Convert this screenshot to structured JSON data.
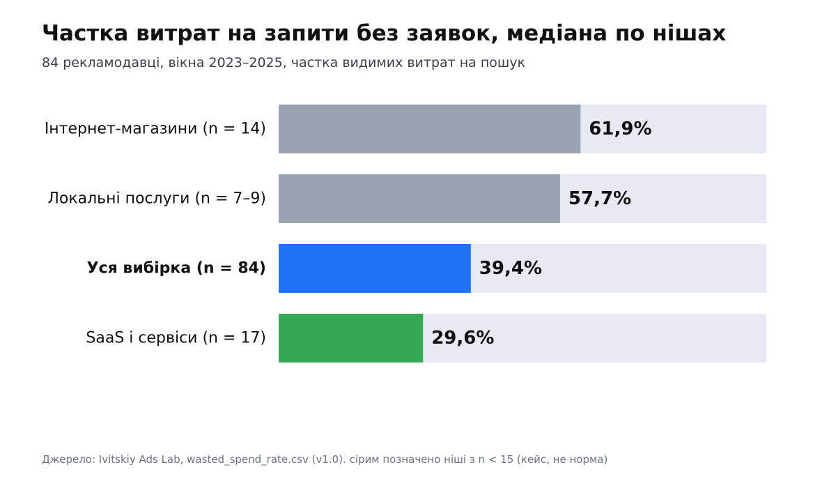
{
  "chart_data": {
    "type": "bar",
    "orientation": "horizontal",
    "title": "Частка витрат на запити без заявок, медіана по нішах",
    "subtitle": "84 рекламодавці, вікна 2023–2025, частка видимих витрат на пошук",
    "categories": [
      "Інтернет-магазини (n = 14)",
      "Локальні послуги (n = 7–9)",
      "Уся вибірка (n = 84)",
      "SaaS і сервіси (n = 17)"
    ],
    "values": [
      61.9,
      57.7,
      39.4,
      29.6
    ],
    "value_labels": [
      "61,9%",
      "57,7%",
      "39,4%",
      "29,6%"
    ],
    "emphasized": [
      false,
      false,
      true,
      false
    ],
    "colors": [
      "#9aa3b2",
      "#9aa3b2",
      "#1e73f7",
      "#34a853"
    ],
    "track_color": "#e7eaf2",
    "xlim": [
      0,
      100
    ],
    "grid": false,
    "legend": "none"
  },
  "footer": {
    "source": "Джерело: Ivitskiy Ads Lab, wasted_spend_rate.csv (v1.0). сірим позначено ніші з n < 15 (кейс, не норма)"
  }
}
